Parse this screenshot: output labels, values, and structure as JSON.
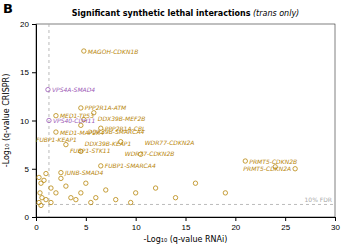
{
  "chart_data": {
    "type": "scatter",
    "title": "Significant synthetic lethal interactions",
    "subtitle": " (trans only)",
    "x_label": "-Log₁₀ (q-value RNAi)",
    "y_label": "-Log₁₀ (q-value CRISPR)",
    "xlim": [
      0,
      30
    ],
    "ylim": [
      0,
      20
    ],
    "xticks": [
      0,
      5,
      10,
      15,
      20,
      25,
      30
    ],
    "yticks": [
      0,
      5,
      10,
      15,
      20
    ],
    "marker": "open-circle",
    "x": [
      4.8,
      1.2,
      2.0,
      4.5,
      5.8,
      4.8,
      4.5,
      6.5,
      2.0,
      1.3,
      3.0,
      8.5,
      4.5,
      10.5,
      21.0,
      6.5,
      26.0,
      2.5,
      0.3,
      0.5,
      0.8,
      1.0,
      1.5,
      0.4,
      0.6,
      1.0,
      0.3,
      0.5,
      1.5,
      2.0,
      2.5,
      3.0,
      3.5,
      4.0,
      4.5,
      5.0,
      5.5,
      6.0,
      7.0,
      8.0,
      9.5,
      10.0,
      12.0,
      14.0,
      16.0,
      19.0,
      24.0
    ],
    "values": [
      17.2,
      13.2,
      10.5,
      11.3,
      10.8,
      10.1,
      9.5,
      9.2,
      8.8,
      10.0,
      7.5,
      7.8,
      6.8,
      6.5,
      5.8,
      5.3,
      5.0,
      4.6,
      4.1,
      3.5,
      3.8,
      4.5,
      3.0,
      2.5,
      2.0,
      1.8,
      1.5,
      1.2,
      1.5,
      2.5,
      4.0,
      3.2,
      2.0,
      1.8,
      2.5,
      3.5,
      1.5,
      2.0,
      2.8,
      1.8,
      1.5,
      2.5,
      3.0,
      2.0,
      3.5,
      2.5,
      5.2
    ],
    "point_labels": [
      "MAGOH-CDKN1B",
      "VPS4A-SMAD4",
      "MED1-TP53",
      "PPP2R1A-ATM",
      "DDX39B-MEF2B",
      "DDX39B-SMARCA4",
      "DDX39B-KEAP1",
      "PPP2R1A-CBL",
      "MED1-MAP2K4",
      "VPS40-CDH11",
      "FUBP1-STK11",
      "WDR77-CDKN2B",
      "FUBP1-KEAP1",
      "WDR77-CDKN2A",
      "PRMT5-CDKN2B",
      "FUBP1-SMARCA4",
      "PRMT5-CDKN2A",
      "JUNB-SMAD4",
      null,
      null,
      null,
      null,
      null,
      null,
      null,
      null,
      null,
      null,
      null,
      null,
      null,
      null,
      null,
      null,
      null,
      null,
      null,
      null,
      null,
      null,
      null,
      null,
      null,
      null,
      null,
      null,
      null
    ],
    "colors": [
      "#b8860b",
      "#9b59b6",
      "#b8860b",
      "#b8860b",
      "#b8860b",
      "#b8860b",
      "#b8860b",
      "#b8860b",
      "#b8860b",
      "#9b59b6",
      "#b8860b",
      "#b8860b",
      "#b8860b",
      "#b8860b",
      "#b8860b",
      "#b8860b",
      "#b8860b",
      "#b8860b",
      "#b8860b",
      "#b8860b",
      "#b8860b",
      "#b8860b",
      "#b8860b",
      "#b8860b",
      "#b8860b",
      "#b8860b",
      "#b8860b",
      "#b8860b",
      "#b8860b",
      "#b8860b",
      "#b8860b",
      "#b8860b",
      "#b8860b",
      "#b8860b",
      "#b8860b",
      "#b8860b",
      "#b8860b",
      "#b8860b",
      "#b8860b",
      "#b8860b",
      "#b8860b",
      "#b8860b",
      "#b8860b",
      "#b8860b",
      "#b8860b",
      "#b8860b",
      "#b8860b"
    ],
    "reference_lines": [
      {
        "axis": "y",
        "value": 1.3,
        "color": "#aaaaaa",
        "line_style": "dashed",
        "label": "10% FDR"
      },
      {
        "axis": "x",
        "value": 1.3,
        "color": "#aaaaaa",
        "line_style": "dashed"
      }
    ],
    "annotations": [
      {
        "text": "B"
      }
    ],
    "grid": false
  }
}
